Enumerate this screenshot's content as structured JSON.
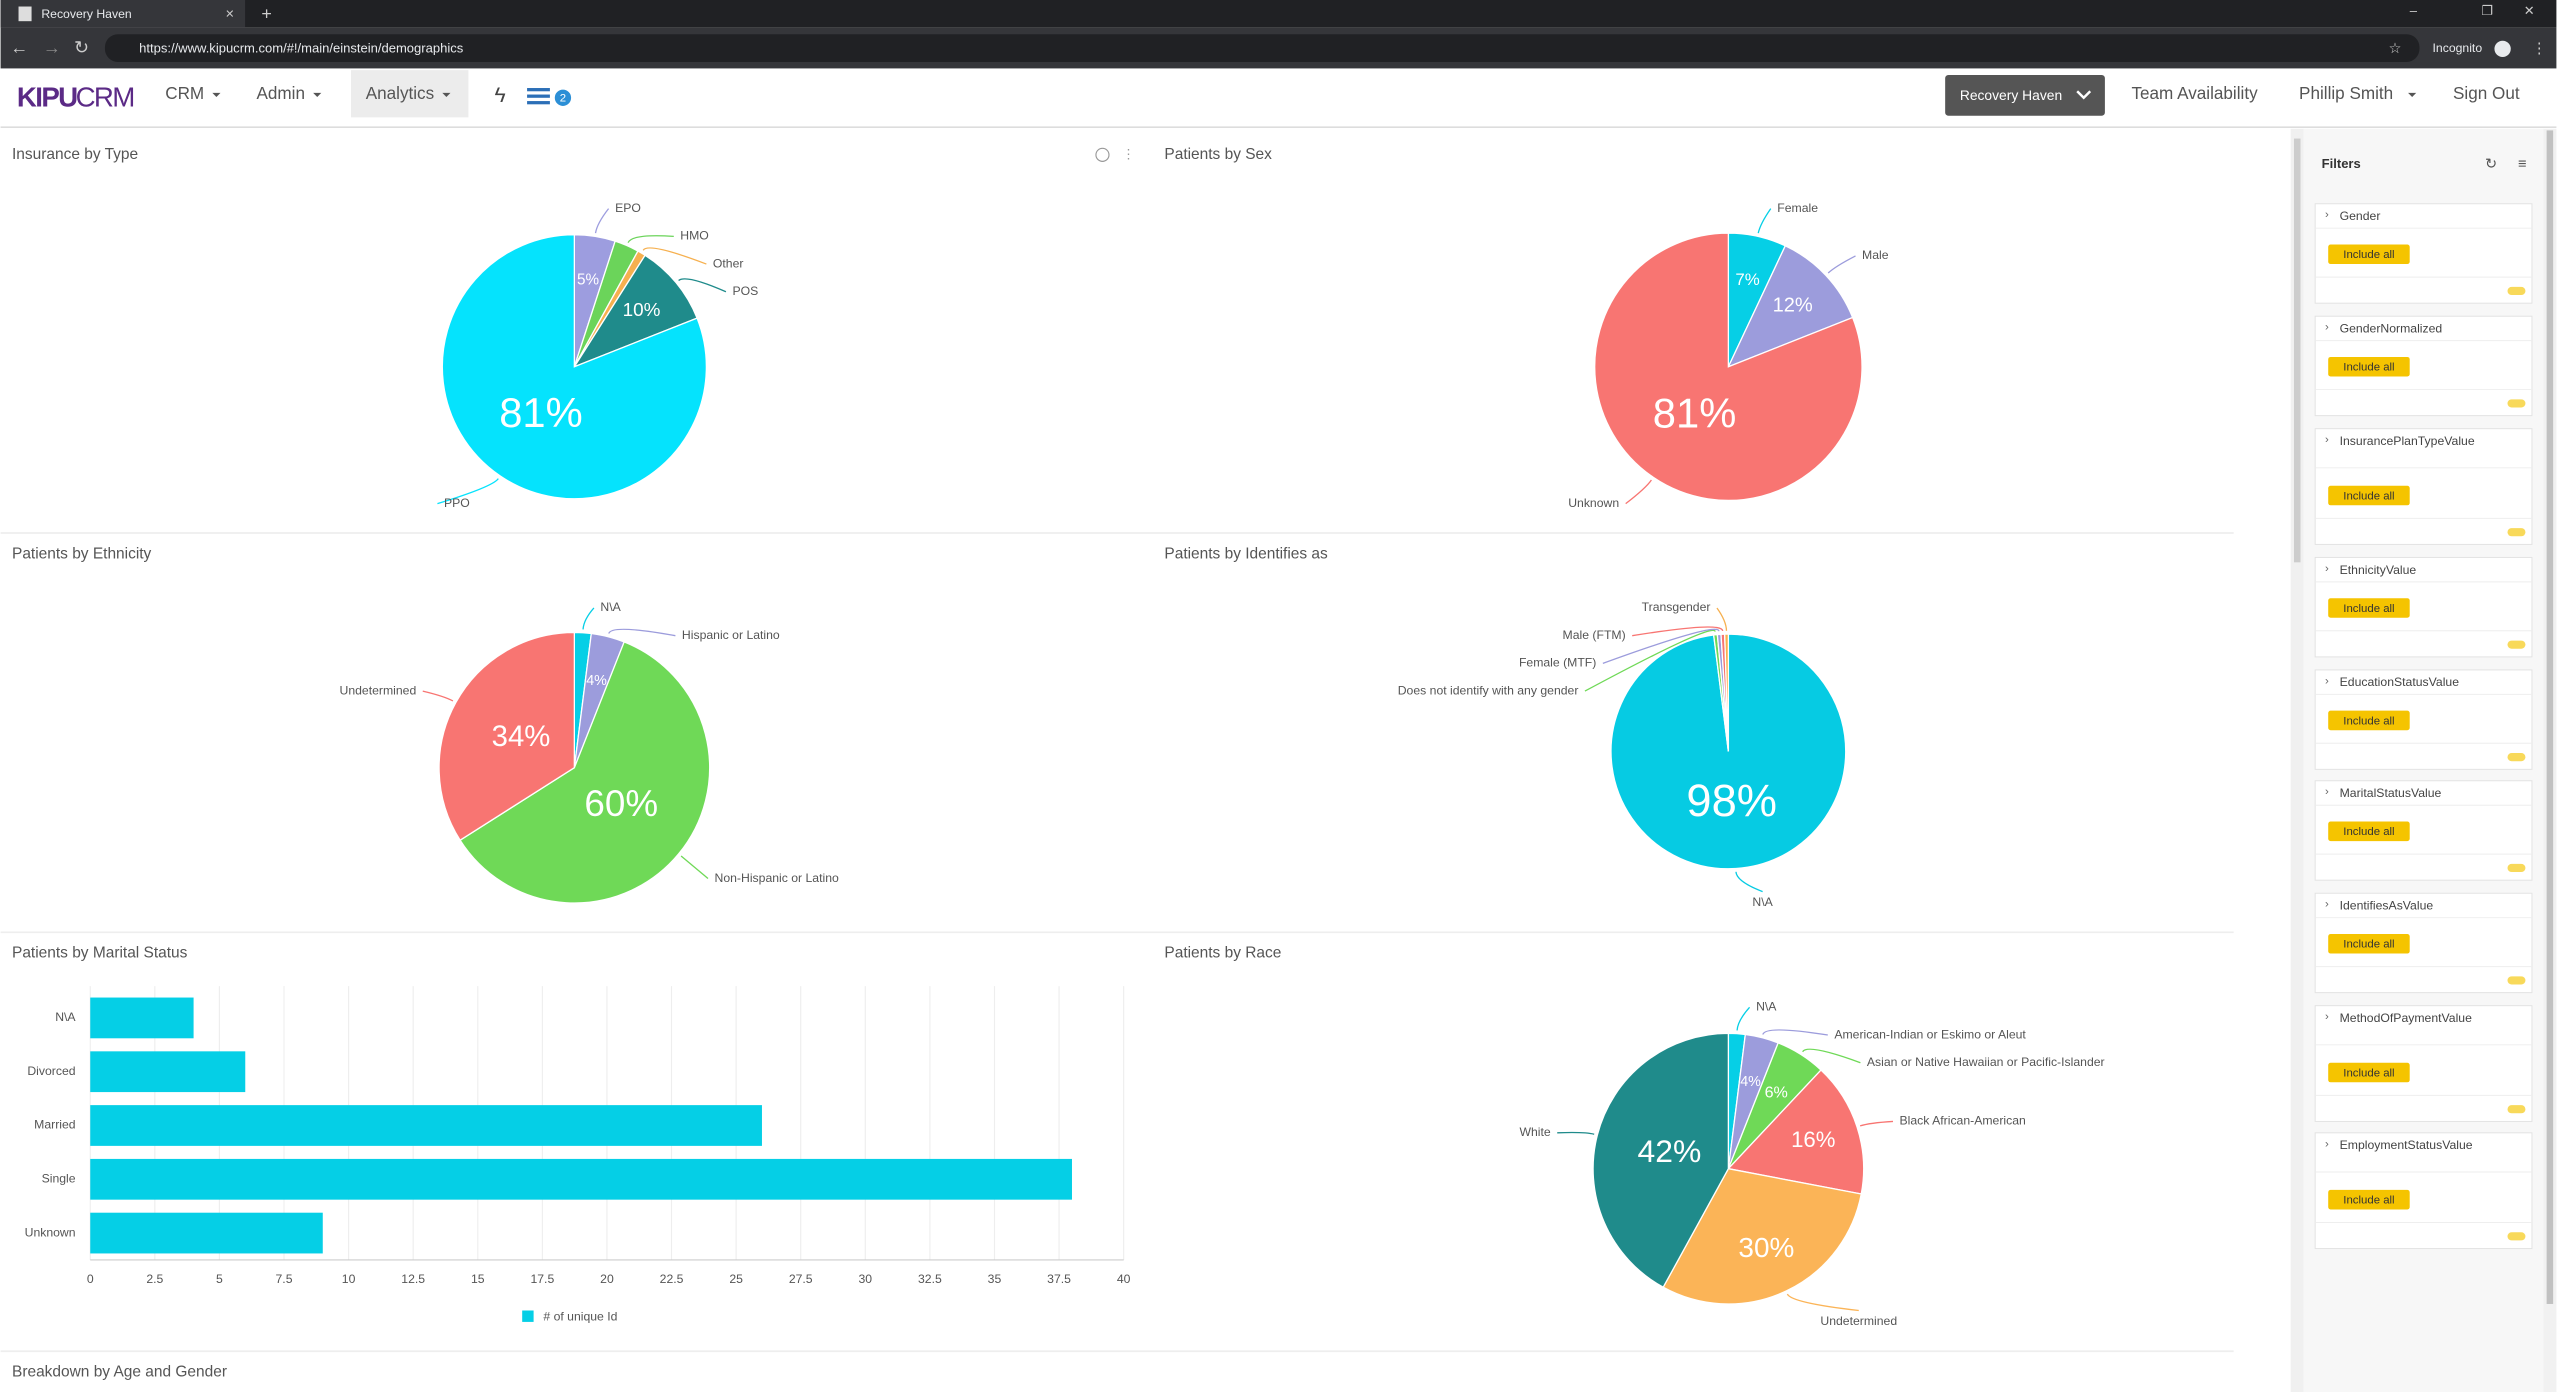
{
  "browser": {
    "tab_title": "Recovery Haven",
    "url": "https://www.kipucrm.com/#!/main/einstein/demographics",
    "mode": "Incognito"
  },
  "nav": {
    "logo_main": "KIPU",
    "logo_sub": "CRM",
    "menu": [
      "CRM",
      "Admin",
      "Analytics"
    ],
    "badge": 2,
    "facility": "Recovery Haven",
    "links": [
      "Team Availability",
      "Phillip Smith",
      "Sign Out"
    ]
  },
  "charts": [
    {
      "type": "pie",
      "title": "Insurance by Type",
      "categories": [
        "EPO",
        "HMO",
        "Other",
        "POS",
        "PPO"
      ],
      "values": [
        5,
        3,
        1,
        10,
        81
      ],
      "value_labels": [
        "5%",
        null,
        null,
        "10%",
        "81%"
      ],
      "colors": [
        "#9d9ddf",
        "#6bd45a",
        "#f6b04f",
        "#1f8b8b",
        "#05e3fd"
      ]
    },
    {
      "type": "pie",
      "title": "Patients by Sex",
      "categories": [
        "Female",
        "Male",
        "Unknown"
      ],
      "values": [
        7,
        12,
        81
      ],
      "value_labels": [
        "7%",
        "12%",
        "81%"
      ],
      "colors": [
        "#06cfe6",
        "#9c9cdc",
        "#f87572"
      ]
    },
    {
      "type": "pie",
      "title": "Patients by Ethnicity",
      "categories": [
        "N\\A",
        "Hispanic or Latino",
        "Non-Hispanic or Latino",
        "Undetermined"
      ],
      "values": [
        2,
        4,
        60,
        34
      ],
      "value_labels": [
        null,
        "4%",
        "60%",
        "34%"
      ],
      "colors": [
        "#06cfe6",
        "#9c9cdc",
        "#6fd957",
        "#f87572"
      ]
    },
    {
      "type": "pie",
      "title": "Patients by Identifies as",
      "categories": [
        "N\\A",
        "Does not identify with any gender",
        "Female (MTF)",
        "Male (FTM)",
        "Transgender"
      ],
      "values": [
        98,
        0.5,
        0.5,
        0.5,
        0.5
      ],
      "value_labels": [
        "98%",
        null,
        null,
        null,
        null
      ],
      "colors": [
        "#06cbe3",
        "#6fd957",
        "#9c9cdc",
        "#f87572",
        "#f6b04f"
      ]
    },
    {
      "type": "bar",
      "title": "Patients by Marital Status",
      "categories": [
        "N\\A",
        "Divorced",
        "Married",
        "Single",
        "Unknown"
      ],
      "values": [
        4,
        6,
        26,
        38,
        9
      ],
      "color": "#05cfe6",
      "xlim": [
        0,
        40
      ],
      "xticks": [
        0,
        2.5,
        5,
        7.5,
        10,
        12.5,
        15,
        17.5,
        20,
        22.5,
        25,
        27.5,
        30,
        32.5,
        35,
        37.5,
        40
      ],
      "grid": true,
      "legend": "# of unique Id"
    },
    {
      "type": "pie",
      "title": "Patients by Race",
      "categories": [
        "N\\A",
        "American-Indian or Eskimo or Aleut",
        "Asian or Native Hawaiian or Pacific-Islander",
        "Black African-American",
        "Undetermined",
        "White"
      ],
      "values": [
        2,
        4,
        6,
        16,
        30,
        42
      ],
      "value_labels": [
        null,
        "4%",
        "6%",
        "16%",
        "30%",
        "42%"
      ],
      "colors": [
        "#06cfe6",
        "#9c9cdc",
        "#6fd957",
        "#f87572",
        "#fbb457",
        "#1f8b8b"
      ]
    }
  ],
  "footer_panel_title": "Breakdown by Age and Gender",
  "filters": {
    "title": "Filters",
    "items": [
      {
        "name": "Gender",
        "button": "Include all"
      },
      {
        "name": "GenderNormalized",
        "button": "Include all"
      },
      {
        "name": "InsurancePlanTypeValue",
        "button": "Include all"
      },
      {
        "name": "EthnicityValue",
        "button": "Include all"
      },
      {
        "name": "EducationStatusValue",
        "button": "Include all"
      },
      {
        "name": "MaritalStatusValue",
        "button": "Include all"
      },
      {
        "name": "IdentifiesAsValue",
        "button": "Include all"
      },
      {
        "name": "MethodOfPaymentValue",
        "button": "Include all"
      },
      {
        "name": "EmploymentStatusValue",
        "button": "Include all"
      }
    ]
  }
}
